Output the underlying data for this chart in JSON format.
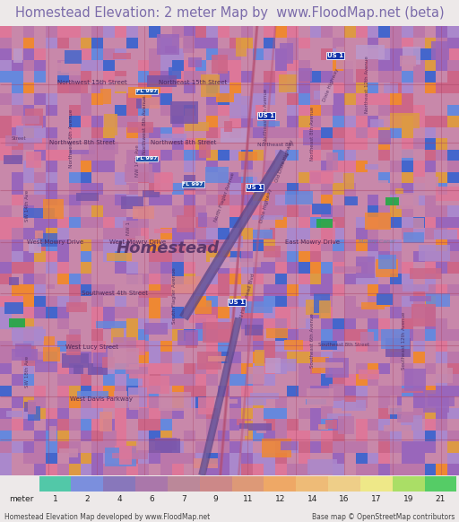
{
  "title": "Homestead Elevation: 2 meter Map by  www.FloodMap.net (beta)",
  "title_color": "#7B6BAA",
  "title_bg": "#EDE9E9",
  "footer_bg": "#EDE9E9",
  "footer_left": "Homestead Elevation Map developed by www.FloodMap.net",
  "footer_right": "Base map © OpenStreetMap contributors",
  "colorbar_label": "meter",
  "colorbar_values": [
    1,
    2,
    4,
    6,
    7,
    9,
    11,
    12,
    14,
    16,
    17,
    19,
    21
  ],
  "colorbar_colors": [
    "#52C8A8",
    "#7B8FDD",
    "#8877BB",
    "#AA77AA",
    "#BB8899",
    "#CC8888",
    "#DD9977",
    "#EEA866",
    "#EEBB77",
    "#EECE88",
    "#EEE888",
    "#AADE66",
    "#55CC66"
  ],
  "map_base": "#C888AA",
  "map_medium": "#BB77AA",
  "purple1": "#9966BB",
  "purple2": "#7755AA",
  "purple3": "#AA88CC",
  "blue1": "#4466CC",
  "blue2": "#6688DD",
  "blue3": "#2233AA",
  "orange1": "#EE8833",
  "orange2": "#DD9944",
  "pink1": "#DD7799",
  "pink2": "#CC6688",
  "road_dark": "#AA4466",
  "road_mid": "#BB5577",
  "diag_dark": "#554488",
  "diag_mid": "#7766AA",
  "green1": "#22AA44",
  "green2": "#44BB55"
}
